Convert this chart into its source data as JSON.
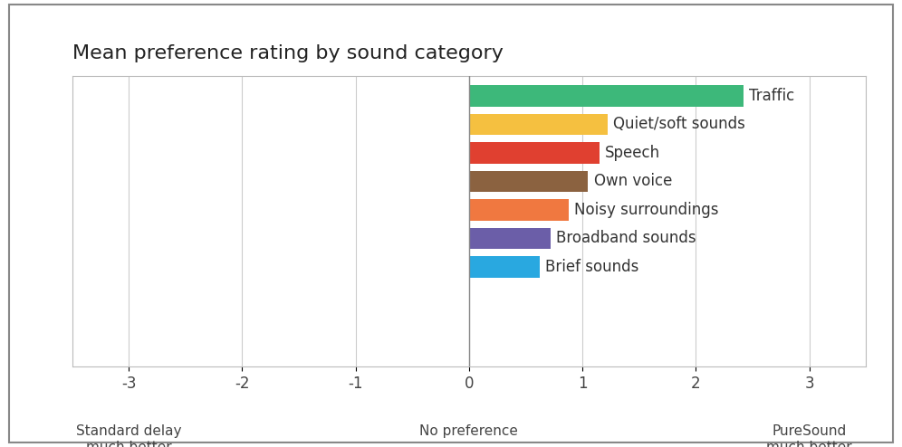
{
  "title": "Mean preference rating by sound category",
  "categories": [
    "Brief sounds",
    "Broadband sounds",
    "Noisy surroundings",
    "Own voice",
    "Speech",
    "Quiet/soft sounds",
    "Traffic"
  ],
  "values": [
    0.62,
    0.72,
    0.88,
    1.05,
    1.15,
    1.22,
    2.42
  ],
  "colors": [
    "#29A8E0",
    "#6B5EA8",
    "#F07840",
    "#8B6240",
    "#E04030",
    "#F5C040",
    "#3DB87A"
  ],
  "xlim": [
    -3.5,
    3.5
  ],
  "xticks": [
    -3,
    -2,
    -1,
    0,
    1,
    2,
    3
  ],
  "xlabel_left": "Standard delay\nmuch better",
  "xlabel_center": "No preference",
  "xlabel_right": "PureSound\nmuch better",
  "background_color": "#ffffff",
  "title_fontsize": 16,
  "tick_fontsize": 12,
  "annotation_fontsize": 12,
  "bar_height": 0.75
}
